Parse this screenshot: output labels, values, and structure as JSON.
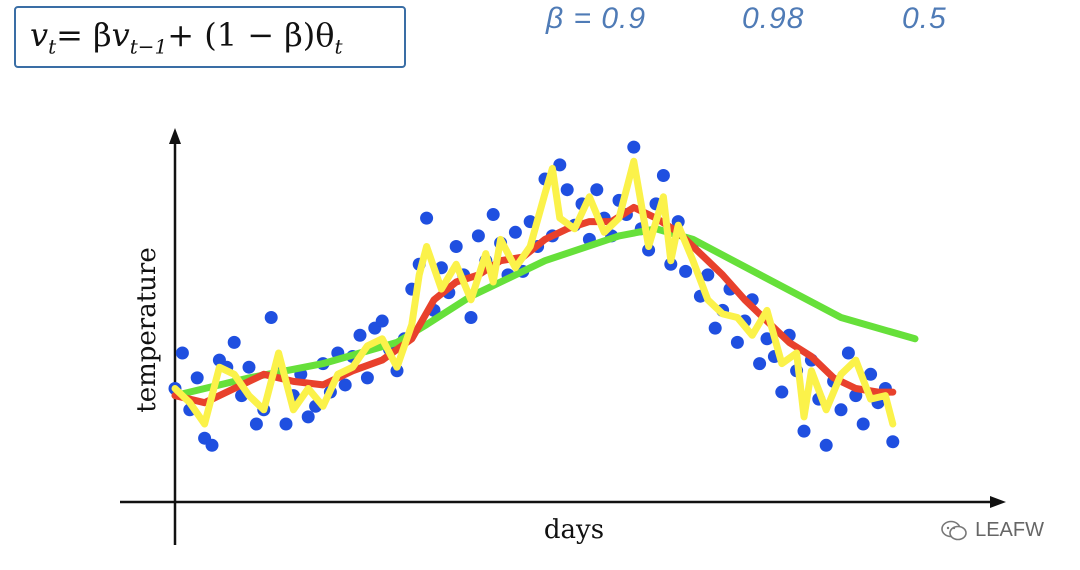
{
  "formula": {
    "text": "v_t = βv_{t−1} + (1 − β)θ_t",
    "lhs": "v",
    "lhs_sub": "t",
    "eq": " = β",
    "v2": "v",
    "v2_sub": "t−1",
    "rest": " + (1 − β)θ",
    "theta_sub": "t"
  },
  "beta_notes": [
    "β = 0.9",
    "0.98",
    "0.5"
  ],
  "watermark": "LEAFW",
  "colors": {
    "formula_border": "#3a6ea5",
    "handwriting": "#4f7bb6",
    "points": "#1f4fe0",
    "beta_09": "#e8412c",
    "beta_098": "#66e03a",
    "beta_05": "#fbf24a",
    "axis": "#111111"
  },
  "chart_data": {
    "type": "scatter",
    "title": "",
    "xlabel": "days",
    "ylabel": "temperature",
    "xlim": [
      0,
      100
    ],
    "ylim": [
      0,
      100
    ],
    "grid": false,
    "legend": "none",
    "ticks_shown": false,
    "points": [
      {
        "x": 0,
        "y": 30
      },
      {
        "x": 1,
        "y": 40
      },
      {
        "x": 2,
        "y": 24
      },
      {
        "x": 3,
        "y": 33
      },
      {
        "x": 4,
        "y": 16
      },
      {
        "x": 5,
        "y": 14
      },
      {
        "x": 6,
        "y": 38
      },
      {
        "x": 7,
        "y": 36
      },
      {
        "x": 8,
        "y": 43
      },
      {
        "x": 9,
        "y": 28
      },
      {
        "x": 10,
        "y": 36
      },
      {
        "x": 11,
        "y": 20
      },
      {
        "x": 12,
        "y": 24
      },
      {
        "x": 13,
        "y": 50
      },
      {
        "x": 14,
        "y": 36
      },
      {
        "x": 15,
        "y": 20
      },
      {
        "x": 16,
        "y": 28
      },
      {
        "x": 17,
        "y": 34
      },
      {
        "x": 18,
        "y": 22
      },
      {
        "x": 19,
        "y": 25
      },
      {
        "x": 20,
        "y": 37
      },
      {
        "x": 21,
        "y": 29
      },
      {
        "x": 22,
        "y": 40
      },
      {
        "x": 23,
        "y": 31
      },
      {
        "x": 24,
        "y": 39
      },
      {
        "x": 25,
        "y": 45
      },
      {
        "x": 26,
        "y": 33
      },
      {
        "x": 27,
        "y": 47
      },
      {
        "x": 28,
        "y": 49
      },
      {
        "x": 29,
        "y": 41
      },
      {
        "x": 30,
        "y": 35
      },
      {
        "x": 31,
        "y": 44
      },
      {
        "x": 32,
        "y": 58
      },
      {
        "x": 33,
        "y": 65
      },
      {
        "x": 34,
        "y": 78
      },
      {
        "x": 35,
        "y": 52
      },
      {
        "x": 36,
        "y": 64
      },
      {
        "x": 37,
        "y": 57
      },
      {
        "x": 38,
        "y": 70
      },
      {
        "x": 39,
        "y": 62
      },
      {
        "x": 40,
        "y": 50
      },
      {
        "x": 41,
        "y": 73
      },
      {
        "x": 42,
        "y": 66
      },
      {
        "x": 43,
        "y": 79
      },
      {
        "x": 44,
        "y": 71
      },
      {
        "x": 45,
        "y": 62
      },
      {
        "x": 46,
        "y": 74
      },
      {
        "x": 47,
        "y": 63
      },
      {
        "x": 48,
        "y": 77
      },
      {
        "x": 49,
        "y": 70
      },
      {
        "x": 50,
        "y": 89
      },
      {
        "x": 51,
        "y": 73
      },
      {
        "x": 52,
        "y": 93
      },
      {
        "x": 53,
        "y": 86
      },
      {
        "x": 54,
        "y": 76
      },
      {
        "x": 55,
        "y": 82
      },
      {
        "x": 56,
        "y": 72
      },
      {
        "x": 57,
        "y": 86
      },
      {
        "x": 58,
        "y": 78
      },
      {
        "x": 59,
        "y": 73
      },
      {
        "x": 60,
        "y": 83
      },
      {
        "x": 61,
        "y": 79
      },
      {
        "x": 62,
        "y": 98
      },
      {
        "x": 63,
        "y": 75
      },
      {
        "x": 64,
        "y": 69
      },
      {
        "x": 65,
        "y": 82
      },
      {
        "x": 66,
        "y": 90
      },
      {
        "x": 67,
        "y": 65
      },
      {
        "x": 68,
        "y": 77
      },
      {
        "x": 69,
        "y": 63
      },
      {
        "x": 70,
        "y": 71
      },
      {
        "x": 71,
        "y": 56
      },
      {
        "x": 72,
        "y": 62
      },
      {
        "x": 73,
        "y": 47
      },
      {
        "x": 74,
        "y": 52
      },
      {
        "x": 75,
        "y": 58
      },
      {
        "x": 76,
        "y": 43
      },
      {
        "x": 77,
        "y": 49
      },
      {
        "x": 78,
        "y": 55
      },
      {
        "x": 79,
        "y": 37
      },
      {
        "x": 80,
        "y": 44
      },
      {
        "x": 81,
        "y": 39
      },
      {
        "x": 82,
        "y": 29
      },
      {
        "x": 83,
        "y": 45
      },
      {
        "x": 84,
        "y": 35
      },
      {
        "x": 85,
        "y": 18
      },
      {
        "x": 86,
        "y": 38
      },
      {
        "x": 87,
        "y": 27
      },
      {
        "x": 88,
        "y": 14
      },
      {
        "x": 89,
        "y": 32
      },
      {
        "x": 90,
        "y": 24
      },
      {
        "x": 91,
        "y": 40
      },
      {
        "x": 92,
        "y": 28
      },
      {
        "x": 93,
        "y": 20
      },
      {
        "x": 94,
        "y": 34
      },
      {
        "x": 95,
        "y": 26
      },
      {
        "x": 96,
        "y": 30
      },
      {
        "x": 97,
        "y": 15
      }
    ],
    "series": [
      {
        "name": "β = 0.98",
        "color": "#66e03a",
        "x": [
          0,
          10,
          20,
          30,
          34,
          40,
          50,
          60,
          65,
          70,
          80,
          90,
          100
        ],
        "y": [
          28,
          33,
          37,
          43,
          48,
          56,
          66,
          73,
          75,
          72,
          61,
          50,
          44
        ]
      },
      {
        "name": "β = 0.9",
        "color": "#e8412c",
        "x": [
          0,
          4,
          8,
          12,
          16,
          20,
          24,
          28,
          32,
          35,
          38,
          41,
          44,
          47,
          50,
          53,
          56,
          59,
          62,
          65,
          68,
          71,
          74,
          77,
          80,
          83,
          86,
          89,
          92,
          95,
          97
        ],
        "y": [
          28,
          26,
          30,
          34,
          32,
          31,
          35,
          38,
          44,
          55,
          60,
          62,
          66,
          67,
          72,
          75,
          77,
          77,
          81,
          78,
          74,
          68,
          62,
          55,
          49,
          43,
          39,
          33,
          30,
          29,
          29
        ]
      },
      {
        "name": "β = 0.5",
        "color": "#fbf24a",
        "x": [
          0,
          2,
          4,
          6,
          8,
          10,
          12,
          14,
          16,
          18,
          20,
          22,
          24,
          26,
          28,
          30,
          32,
          33,
          34,
          36,
          38,
          40,
          42,
          43,
          44,
          46,
          48,
          50,
          51,
          52,
          54,
          56,
          58,
          60,
          62,
          64,
          66,
          67,
          68,
          70,
          72,
          74,
          76,
          78,
          80,
          82,
          84,
          85,
          86,
          88,
          90,
          92,
          94,
          96,
          97
        ],
        "y": [
          30,
          26,
          20,
          36,
          34,
          28,
          24,
          40,
          24,
          30,
          25,
          34,
          36,
          42,
          44,
          36,
          48,
          62,
          70,
          58,
          65,
          55,
          68,
          60,
          72,
          64,
          70,
          85,
          92,
          78,
          75,
          84,
          74,
          78,
          94,
          70,
          84,
          66,
          76,
          66,
          55,
          51,
          50,
          45,
          52,
          37,
          40,
          22,
          35,
          24,
          34,
          38,
          27,
          28,
          20
        ]
      }
    ]
  }
}
